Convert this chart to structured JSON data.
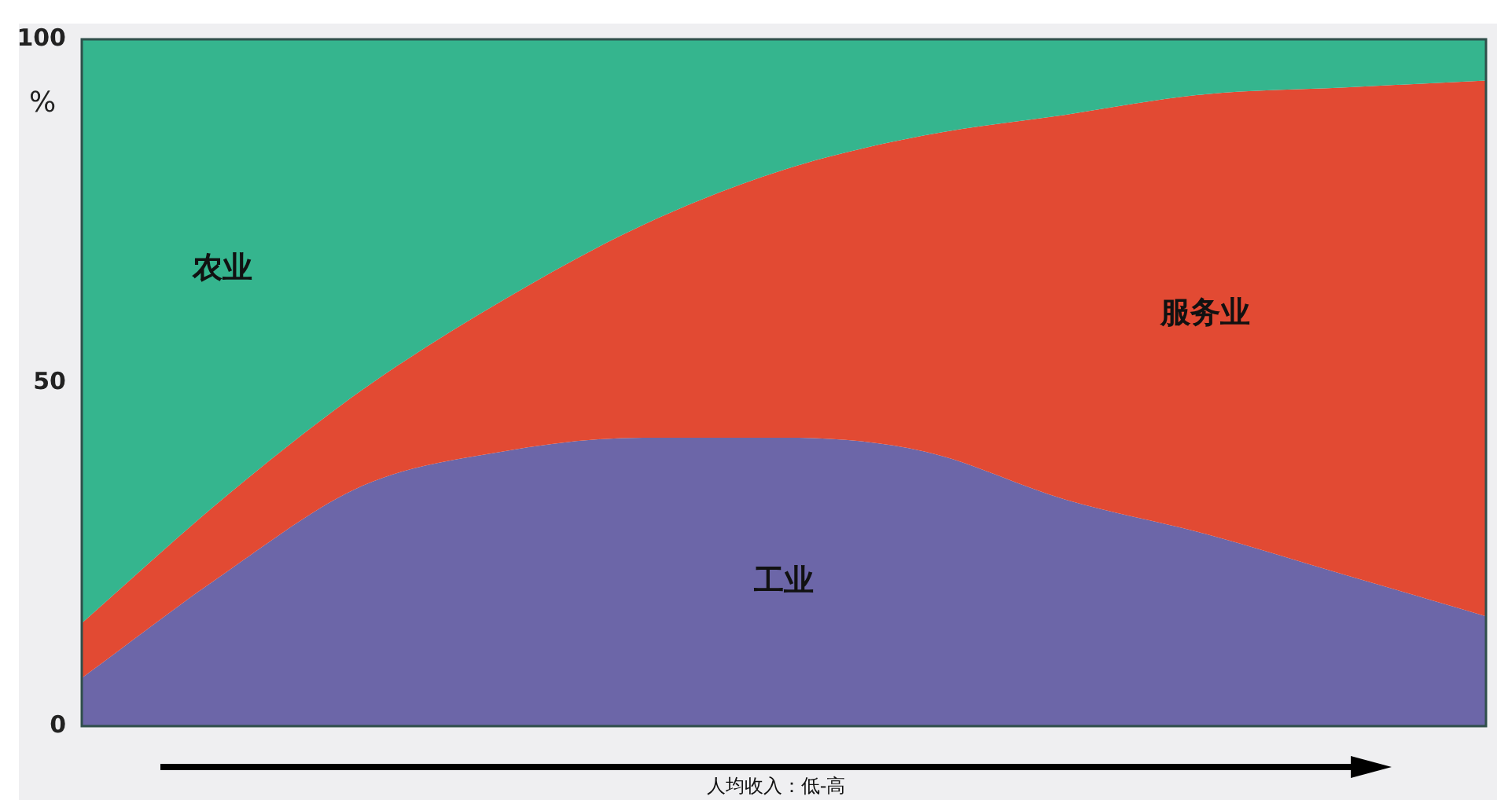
{
  "chart_data": {
    "type": "area",
    "stacked": true,
    "ylabel": "%",
    "xlabel": "人均收入：低-高",
    "categories": [
      null,
      null,
      null,
      null,
      null,
      null,
      null,
      null,
      null,
      null,
      null
    ],
    "ylim": [
      0,
      100
    ],
    "yticks": [
      0,
      50,
      100
    ],
    "series": [
      {
        "name": "工业",
        "color": "#6c66a8",
        "values": [
          7,
          22,
          35,
          40,
          42,
          42,
          40,
          33,
          28,
          22,
          16
        ]
      },
      {
        "name": "服务业",
        "color": "#e24a33",
        "values": [
          8,
          11,
          14,
          22,
          31,
          39,
          46,
          56,
          64,
          71,
          78
        ]
      },
      {
        "name": "农业",
        "color": "#35b58e",
        "values": [
          85,
          67,
          51,
          38,
          27,
          19,
          14,
          11,
          8,
          7,
          6
        ]
      }
    ]
  }
}
